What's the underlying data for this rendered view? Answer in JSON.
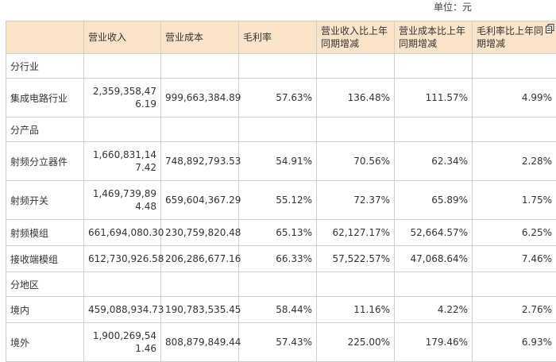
{
  "unit_label": "单位：元",
  "headers": [
    "",
    "营业收入",
    "营业成本",
    "毛利率",
    "营业收入比上年同期增减",
    "营业成本比上年同期增减",
    "毛利率比上年同期增减"
  ],
  "sections": [
    {
      "title": "分行业",
      "rows": [
        {
          "name": "集成电路行业",
          "revenue": "2,359,358,476.19",
          "cost": "999,663,384.89",
          "margin": "57.63%",
          "rev_change": "136.48%",
          "cost_change": "111.57%",
          "margin_change": "4.99%"
        }
      ]
    },
    {
      "title": "分产品",
      "rows": [
        {
          "name": "射频分立器件",
          "revenue": "1,660,831,147.42",
          "cost": "748,892,793.53",
          "margin": "54.91%",
          "rev_change": "70.56%",
          "cost_change": "62.34%",
          "margin_change": "2.28%"
        },
        {
          "name": "射频开关",
          "revenue": "1,469,739,894.48",
          "cost": "659,604,367.29",
          "margin": "55.12%",
          "rev_change": "72.37%",
          "cost_change": "65.89%",
          "margin_change": "1.75%"
        },
        {
          "name": "射频模组",
          "revenue": "661,694,080.30",
          "cost": "230,759,820.48",
          "margin": "65.13%",
          "rev_change": "62,127.17%",
          "cost_change": "52,664.57%",
          "margin_change": "6.25%"
        },
        {
          "name": "接收端模组",
          "revenue": "612,730,926.58",
          "cost": "206,286,677.16",
          "margin": "66.33%",
          "rev_change": "57,522.57%",
          "cost_change": "47,068.64%",
          "margin_change": "7.46%"
        }
      ]
    },
    {
      "title": "分地区",
      "rows": [
        {
          "name": "境内",
          "revenue": "459,088,934.73",
          "cost": "190,783,535.45",
          "margin": "58.44%",
          "rev_change": "11.16%",
          "cost_change": "4.22%",
          "margin_change": "2.76%"
        },
        {
          "name": "境外",
          "revenue": "1,900,269,541.46",
          "cost": "808,879,849.44",
          "margin": "57.43%",
          "rev_change": "225.00%",
          "cost_change": "179.46%",
          "margin_change": "6.93%"
        }
      ]
    }
  ],
  "icons": {
    "copy": "copy-icon"
  }
}
